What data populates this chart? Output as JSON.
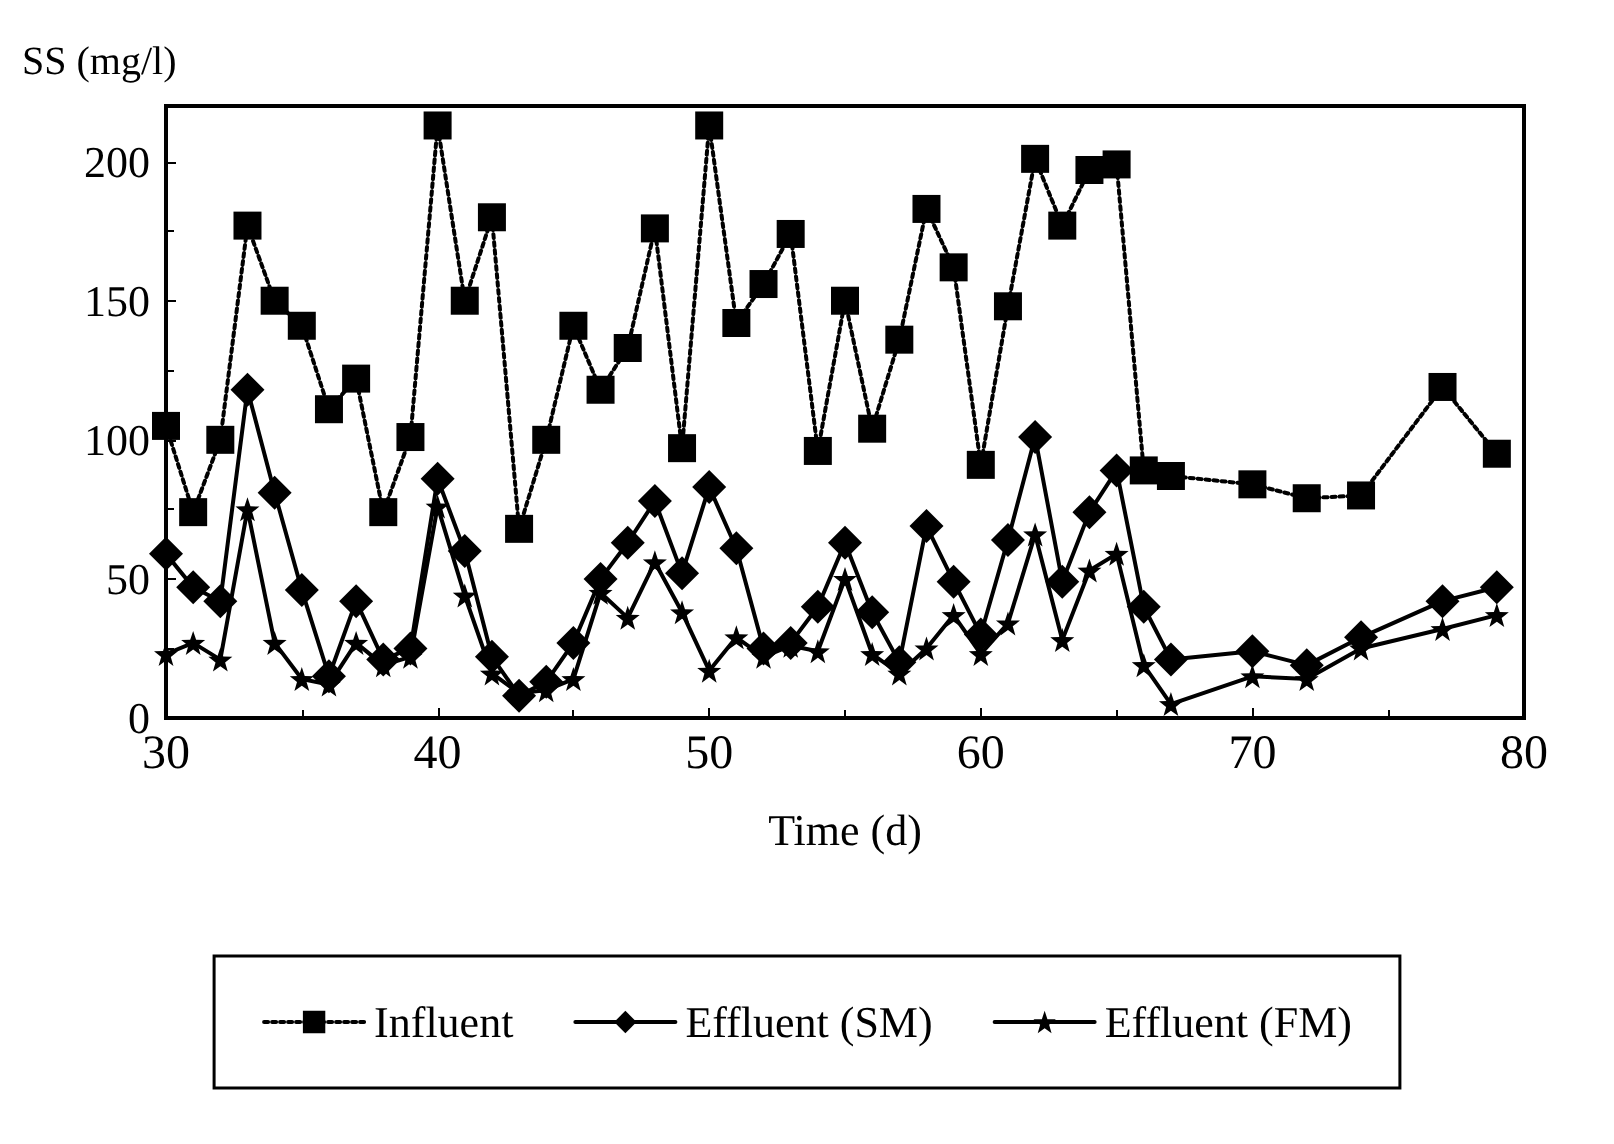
{
  "chart_data": {
    "type": "line",
    "xlabel": "Time (d)",
    "ylabel": "SS (mg/l)",
    "xlim": [
      30,
      80
    ],
    "xticks": [
      30,
      40,
      50,
      60,
      70,
      80
    ],
    "ylim": [
      0,
      220
    ],
    "yticks": [
      0,
      50,
      100,
      150,
      200
    ],
    "grid": false,
    "legend": "bottom",
    "series": [
      {
        "name": "Influent",
        "color": "#000000",
        "marker": "square",
        "line_style": "dotted",
        "x": [
          30,
          31,
          32,
          33,
          34,
          35,
          36,
          37,
          38,
          39,
          40,
          41,
          42,
          43,
          44,
          45,
          46,
          47,
          48,
          49,
          50,
          51,
          52,
          53,
          54,
          55,
          56,
          57,
          58,
          59,
          60,
          61,
          62,
          63,
          64,
          65,
          66,
          67,
          70,
          72,
          74,
          77,
          79
        ],
        "values": [
          105,
          74,
          100,
          177,
          150,
          141,
          111,
          122,
          74,
          101,
          213,
          150,
          180,
          68,
          100,
          141,
          118,
          133,
          176,
          97,
          213,
          142,
          156,
          174,
          96,
          150,
          104,
          136,
          183,
          162,
          91,
          148,
          201,
          177,
          197,
          199,
          89,
          87,
          84,
          79,
          80,
          119,
          95
        ]
      },
      {
        "name": "Effluent (SM)",
        "color": "#000000",
        "marker": "diamond",
        "line_style": "solid",
        "x": [
          30,
          31,
          32,
          33,
          34,
          35,
          36,
          37,
          38,
          39,
          40,
          41,
          42,
          43,
          44,
          45,
          46,
          47,
          48,
          49,
          50,
          51,
          52,
          53,
          54,
          55,
          56,
          57,
          58,
          59,
          60,
          61,
          62,
          63,
          64,
          65,
          66,
          67,
          70,
          72,
          74,
          77,
          79
        ],
        "values": [
          59,
          47,
          42,
          118,
          81,
          46,
          15,
          42,
          21,
          25,
          86,
          60,
          22,
          8,
          13,
          27,
          50,
          63,
          78,
          52,
          83,
          61,
          25,
          27,
          40,
          63,
          38,
          20,
          69,
          49,
          30,
          64,
          101,
          49,
          74,
          89,
          40,
          21,
          24,
          19,
          29,
          42,
          47
        ]
      },
      {
        "name": "Effluent (FM)",
        "color": "#000000",
        "marker": "star",
        "line_style": "solid",
        "x": [
          30,
          31,
          32,
          33,
          34,
          35,
          36,
          37,
          38,
          39,
          40,
          41,
          42,
          43,
          44,
          45,
          46,
          47,
          48,
          49,
          50,
          51,
          52,
          53,
          54,
          55,
          56,
          57,
          58,
          59,
          60,
          61,
          62,
          63,
          64,
          65,
          66,
          67,
          70,
          72,
          74,
          77,
          79
        ],
        "values": [
          23,
          27,
          21,
          75,
          27,
          14,
          12,
          27,
          19,
          22,
          76,
          44,
          16,
          9,
          10,
          14,
          45,
          36,
          56,
          38,
          17,
          29,
          22,
          26,
          24,
          50,
          23,
          16,
          25,
          37,
          23,
          34,
          66,
          28,
          53,
          59,
          19,
          5,
          15,
          14,
          25,
          32,
          37
        ]
      }
    ]
  }
}
